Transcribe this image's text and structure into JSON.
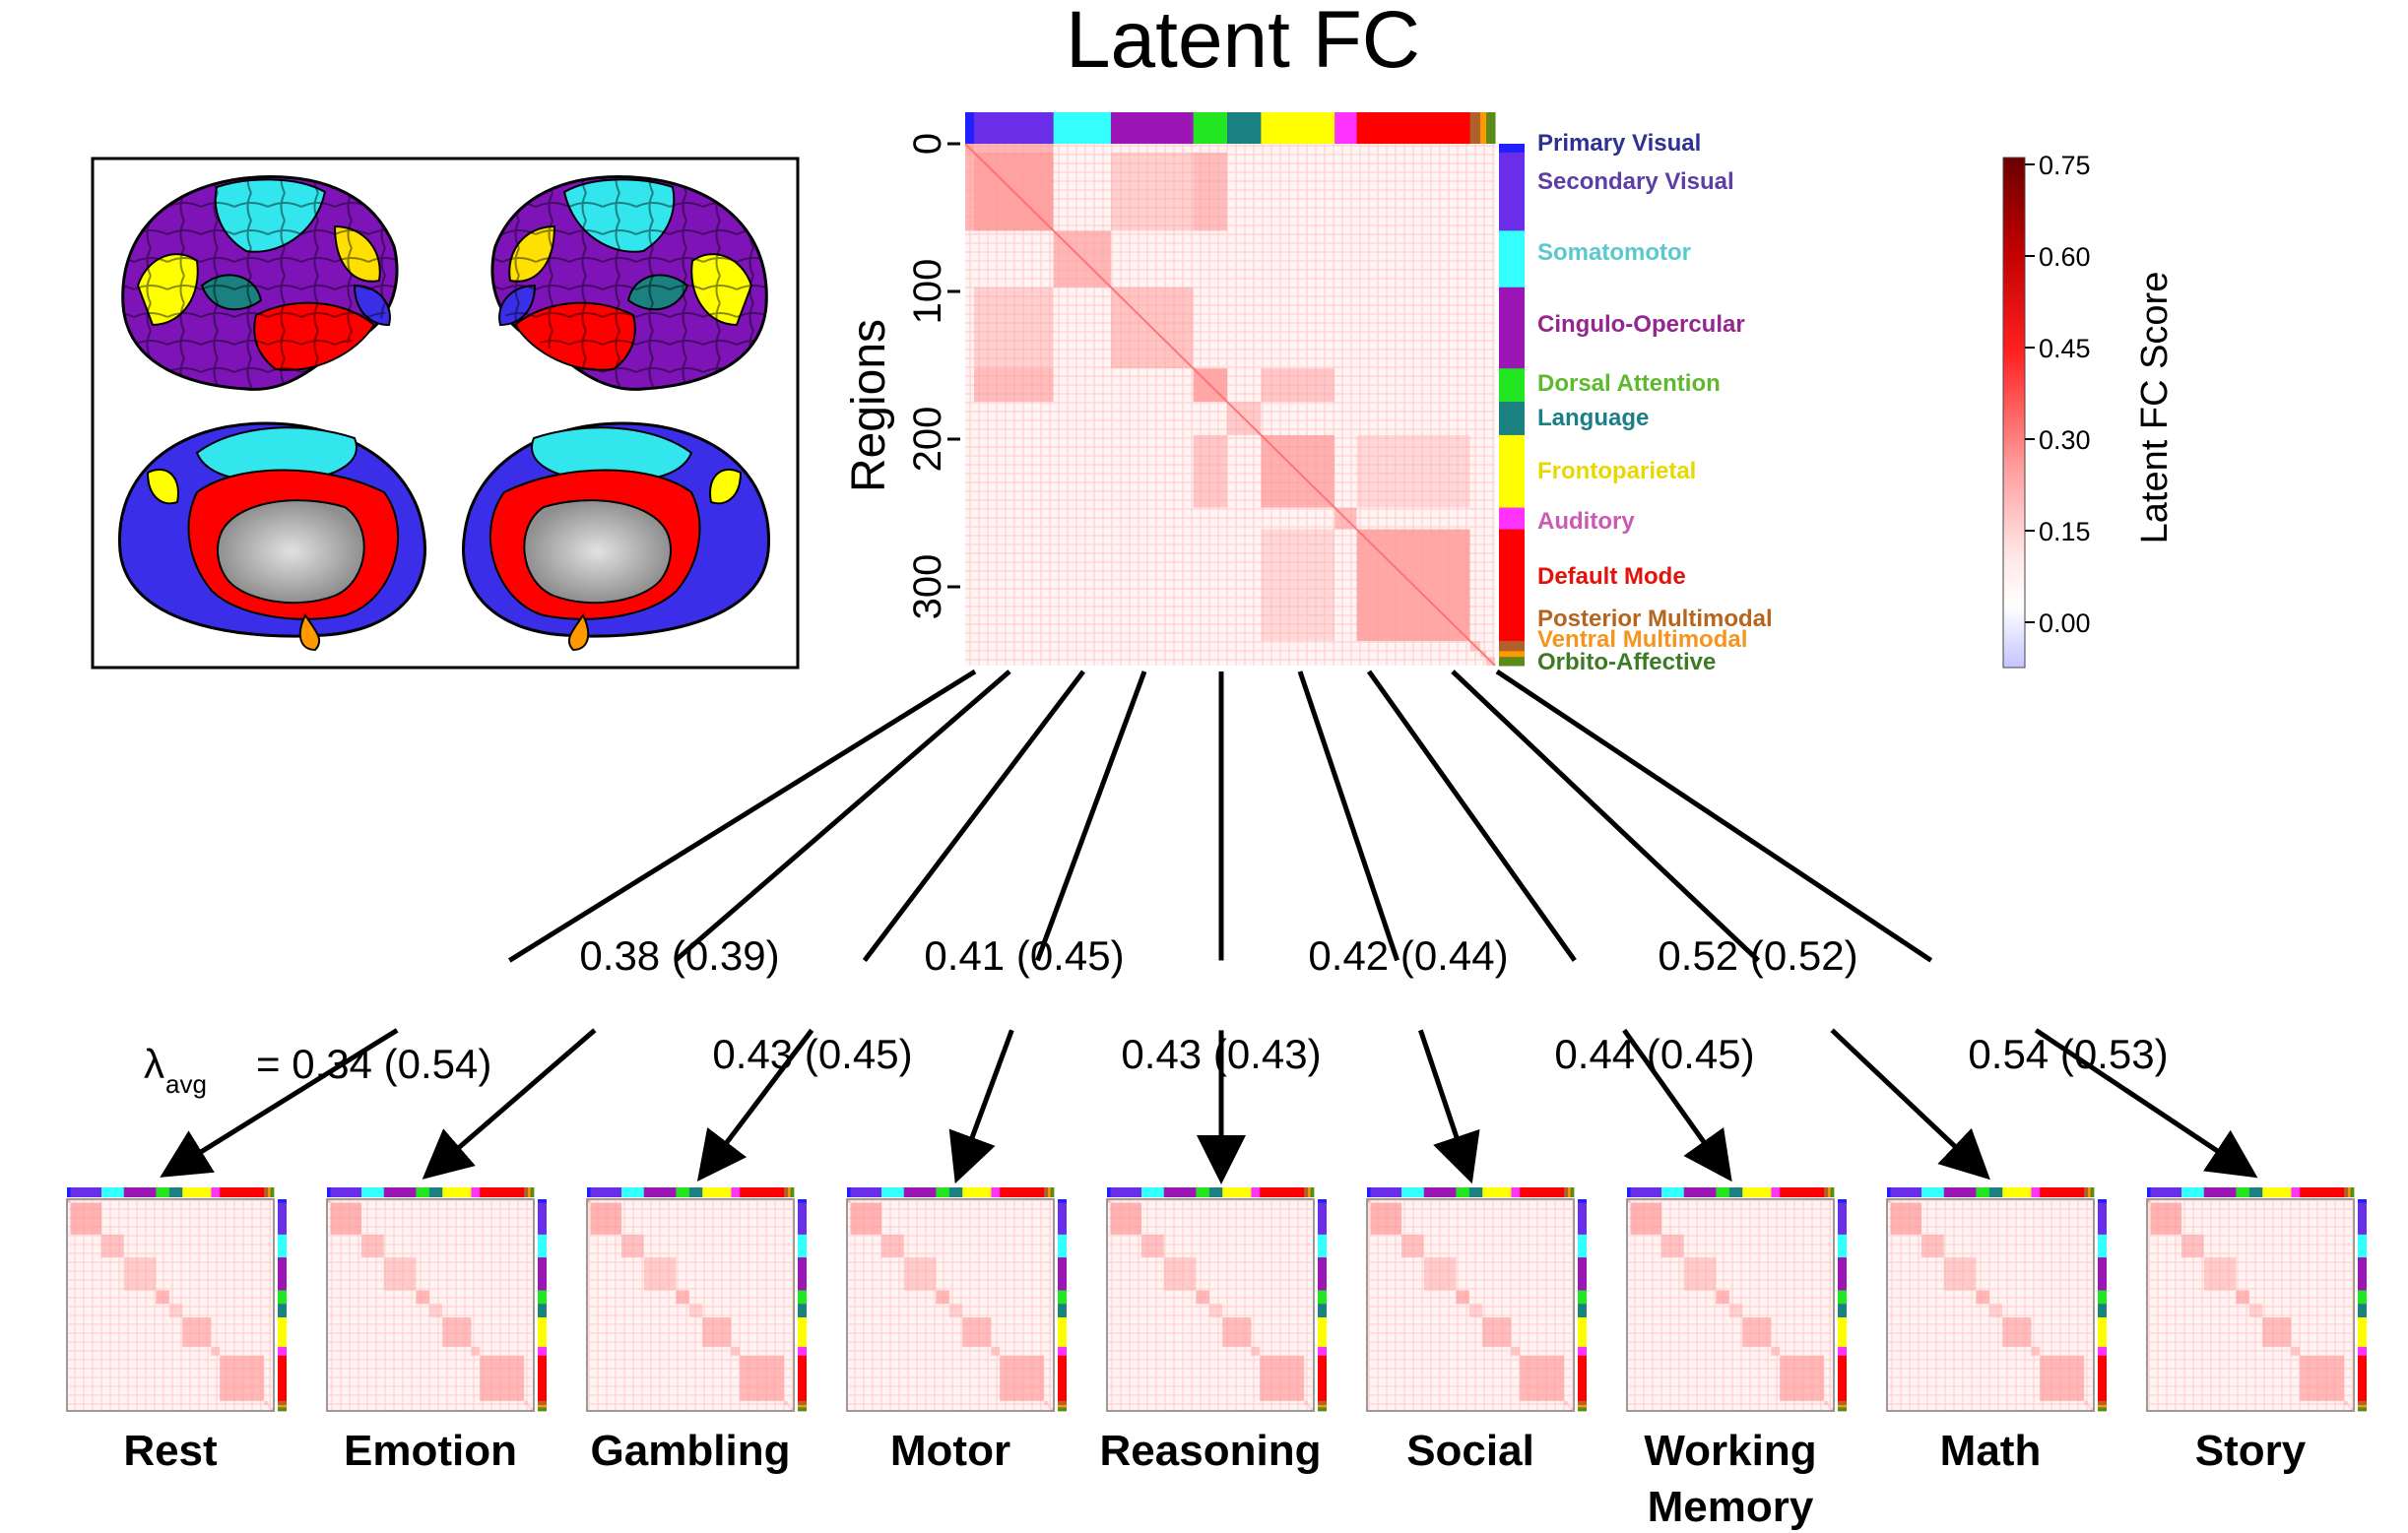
{
  "title": "Latent FC",
  "main_matrix": {
    "y_axis_label": "Regions",
    "y_ticks": [
      "0",
      "100",
      "200",
      "300"
    ]
  },
  "networks": [
    {
      "name": "Primary Visual",
      "color": "#2e3192",
      "bar_color": "#1f1fff",
      "count": 6
    },
    {
      "name": "Secondary Visual",
      "color": "#5b3ea6",
      "bar_color": "#6a2ee8",
      "count": 54
    },
    {
      "name": "Somatomotor",
      "color": "#5bc8d0",
      "bar_color": "#33ffff",
      "count": 39
    },
    {
      "name": "Cingulo-Opercular",
      "color": "#92278f",
      "bar_color": "#9b16b5",
      "count": 56
    },
    {
      "name": "Dorsal Attention",
      "color": "#5fb82d",
      "bar_color": "#22e622",
      "count": 23
    },
    {
      "name": "Language",
      "color": "#1a7f86",
      "bar_color": "#1a8080",
      "count": 23
    },
    {
      "name": "Frontoparietal",
      "color": "#e8d800",
      "bar_color": "#ffff00",
      "count": 50
    },
    {
      "name": "Auditory",
      "color": "#c95bb4",
      "bar_color": "#ff33ff",
      "count": 15
    },
    {
      "name": "Default Mode",
      "color": "#e3120b",
      "bar_color": "#ff0000",
      "count": 77
    },
    {
      "name": "Posterior Multimodal",
      "color": "#b5651d",
      "bar_color": "#b0602a",
      "count": 7
    },
    {
      "name": "Ventral Multimodal",
      "color": "#f7941d",
      "bar_color": "#ff9900",
      "count": 4
    },
    {
      "name": "Orbito-Affective",
      "color": "#3d7a24",
      "bar_color": "#5a8a1a",
      "count": 6
    }
  ],
  "colorbar": {
    "label": "Latent FC Score",
    "ticks": [
      "0.75",
      "0.60",
      "0.45",
      "0.30",
      "0.15",
      "0.00"
    ],
    "colors": [
      "#6b0000",
      "#c00000",
      "#ff2a2a",
      "#ff9999",
      "#ffe5e5",
      "#ffffff",
      "#c8c8ff"
    ]
  },
  "lambda_prefix": "λ",
  "lambda_sub": "avg",
  "tasks": [
    {
      "name": "Rest",
      "name2": "",
      "value": "= 0.34 (0.54)"
    },
    {
      "name": "Emotion",
      "name2": "",
      "value": "0.38 (0.39)"
    },
    {
      "name": "Gambling",
      "name2": "",
      "value": "0.43 (0.45)"
    },
    {
      "name": "Motor",
      "name2": "",
      "value": "0.41 (0.45)"
    },
    {
      "name": "Reasoning",
      "name2": "",
      "value": "0.43 (0.43)"
    },
    {
      "name": "Social",
      "name2": "",
      "value": "0.42 (0.44)"
    },
    {
      "name": "Working",
      "name2": "Memory",
      "value": "0.44 (0.45)"
    },
    {
      "name": "Math",
      "name2": "",
      "value": "0.52 (0.52)"
    },
    {
      "name": "Story",
      "name2": "",
      "value": "0.54 (0.53)"
    }
  ]
}
